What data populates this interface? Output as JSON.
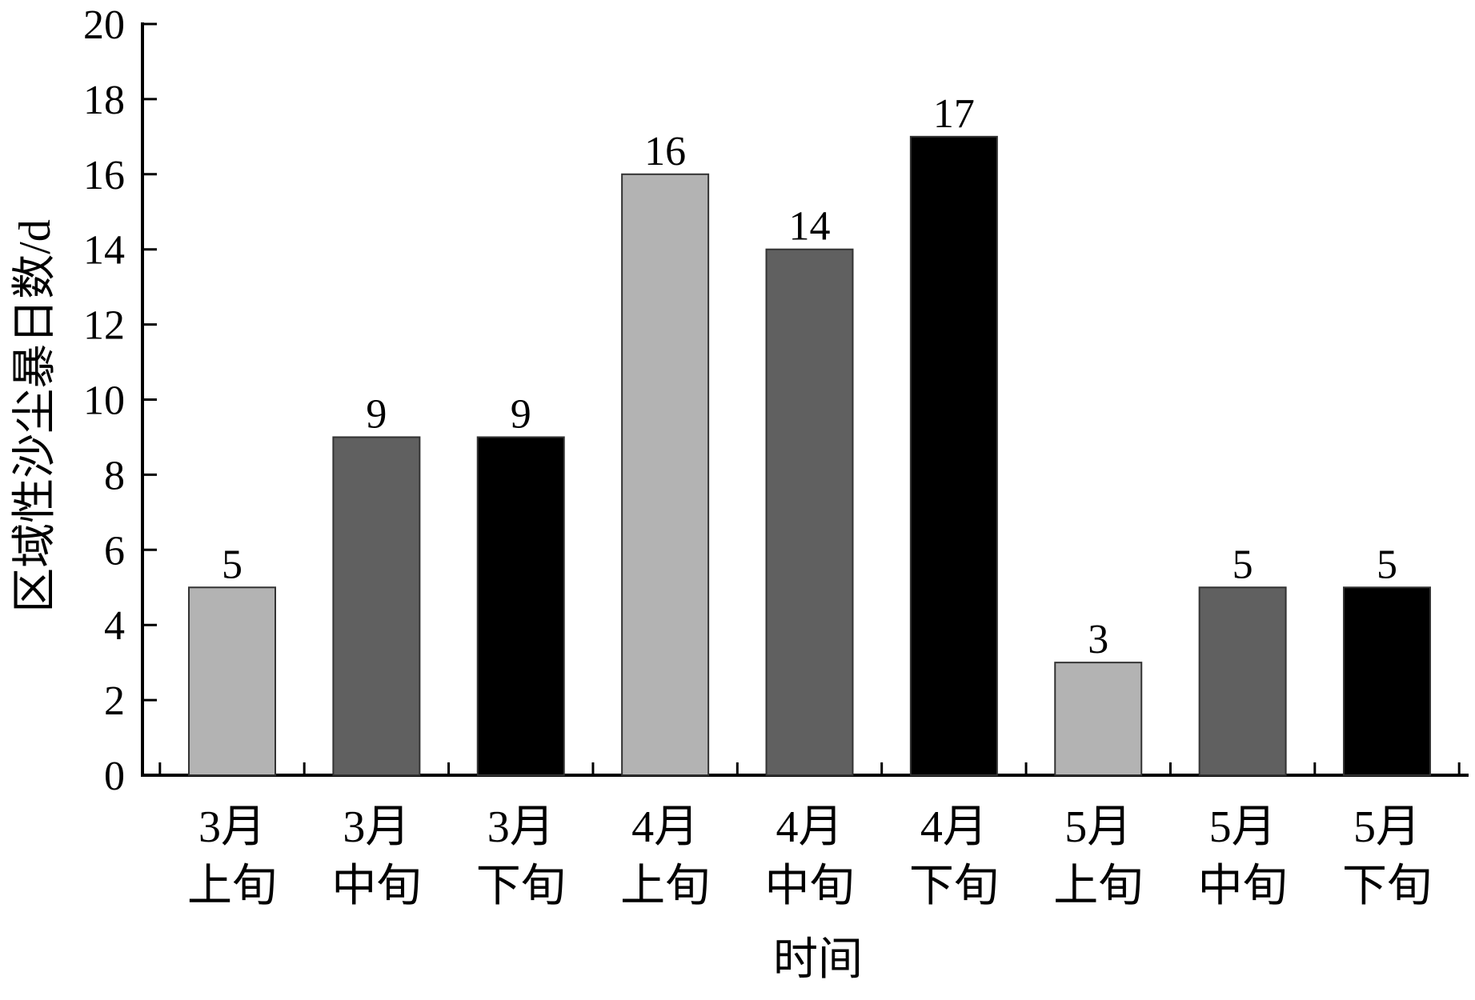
{
  "chart_data": {
    "type": "bar",
    "title": "",
    "xlabel": "时间",
    "ylabel": "区域性沙尘暴日数/d",
    "ylim": [
      0,
      20
    ],
    "yticks": [
      0,
      2,
      4,
      6,
      8,
      10,
      12,
      14,
      16,
      18,
      20
    ],
    "grid": false,
    "legend": "none",
    "categories": [
      [
        "3月",
        "上旬"
      ],
      [
        "3月",
        "中旬"
      ],
      [
        "3月",
        "下旬"
      ],
      [
        "4月",
        "上旬"
      ],
      [
        "4月",
        "中旬"
      ],
      [
        "4月",
        "下旬"
      ],
      [
        "5月",
        "上旬"
      ],
      [
        "5月",
        "中旬"
      ],
      [
        "5月",
        "下旬"
      ]
    ],
    "values": [
      5,
      9,
      9,
      16,
      14,
      17,
      3,
      5,
      5
    ],
    "data_labels": [
      "5",
      "9",
      "9",
      "16",
      "14",
      "17",
      "3",
      "5",
      "5"
    ],
    "bar_colors": [
      "#b3b3b3",
      "#606060",
      "#000000",
      "#b3b3b3",
      "#606060",
      "#000000",
      "#b3b3b3",
      "#606060",
      "#000000"
    ]
  }
}
